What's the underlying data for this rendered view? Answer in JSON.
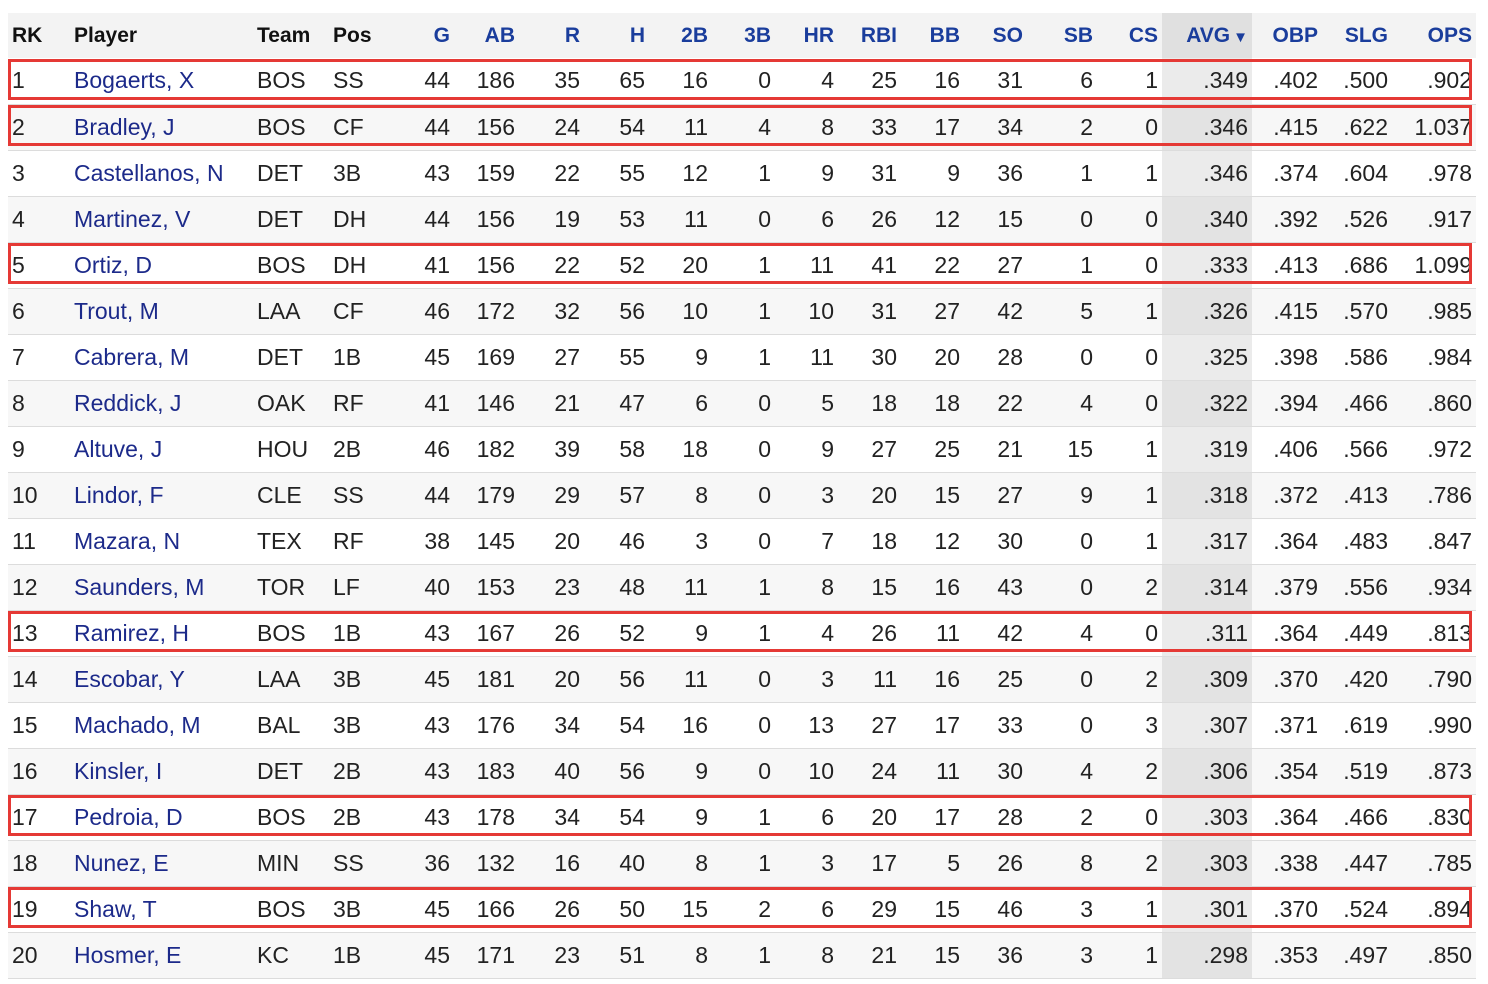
{
  "columns": [
    "RK",
    "Player",
    "Team",
    "Pos",
    "G",
    "AB",
    "R",
    "H",
    "2B",
    "3B",
    "HR",
    "RBI",
    "BB",
    "SO",
    "SB",
    "CS",
    "AVG",
    "OBP",
    "SLG",
    "OPS"
  ],
  "sort": {
    "column": "AVG",
    "indicator": "▼"
  },
  "colors": {
    "link": "#1c2a8a",
    "header_link": "#1a3d9c",
    "highlight": "#e53935"
  },
  "rows": [
    {
      "rk": "1",
      "player": "Bogaerts, X",
      "team": "BOS",
      "pos": "SS",
      "g": "44",
      "ab": "186",
      "r": "35",
      "h": "65",
      "doubles": "16",
      "triples": "0",
      "hr": "4",
      "rbi": "25",
      "bb": "16",
      "so": "31",
      "sb": "6",
      "cs": "1",
      "avg": ".349",
      "obp": ".402",
      "slg": ".500",
      "ops": ".902",
      "highlighted": true
    },
    {
      "rk": "2",
      "player": "Bradley, J",
      "team": "BOS",
      "pos": "CF",
      "g": "44",
      "ab": "156",
      "r": "24",
      "h": "54",
      "doubles": "11",
      "triples": "4",
      "hr": "8",
      "rbi": "33",
      "bb": "17",
      "so": "34",
      "sb": "2",
      "cs": "0",
      "avg": ".346",
      "obp": ".415",
      "slg": ".622",
      "ops": "1.037",
      "highlighted": true
    },
    {
      "rk": "3",
      "player": "Castellanos, N",
      "team": "DET",
      "pos": "3B",
      "g": "43",
      "ab": "159",
      "r": "22",
      "h": "55",
      "doubles": "12",
      "triples": "1",
      "hr": "9",
      "rbi": "31",
      "bb": "9",
      "so": "36",
      "sb": "1",
      "cs": "1",
      "avg": ".346",
      "obp": ".374",
      "slg": ".604",
      "ops": ".978",
      "highlighted": false
    },
    {
      "rk": "4",
      "player": "Martinez, V",
      "team": "DET",
      "pos": "DH",
      "g": "44",
      "ab": "156",
      "r": "19",
      "h": "53",
      "doubles": "11",
      "triples": "0",
      "hr": "6",
      "rbi": "26",
      "bb": "12",
      "so": "15",
      "sb": "0",
      "cs": "0",
      "avg": ".340",
      "obp": ".392",
      "slg": ".526",
      "ops": ".917",
      "highlighted": false
    },
    {
      "rk": "5",
      "player": "Ortiz, D",
      "team": "BOS",
      "pos": "DH",
      "g": "41",
      "ab": "156",
      "r": "22",
      "h": "52",
      "doubles": "20",
      "triples": "1",
      "hr": "11",
      "rbi": "41",
      "bb": "22",
      "so": "27",
      "sb": "1",
      "cs": "0",
      "avg": ".333",
      "obp": ".413",
      "slg": ".686",
      "ops": "1.099",
      "highlighted": true
    },
    {
      "rk": "6",
      "player": "Trout, M",
      "team": "LAA",
      "pos": "CF",
      "g": "46",
      "ab": "172",
      "r": "32",
      "h": "56",
      "doubles": "10",
      "triples": "1",
      "hr": "10",
      "rbi": "31",
      "bb": "27",
      "so": "42",
      "sb": "5",
      "cs": "1",
      "avg": ".326",
      "obp": ".415",
      "slg": ".570",
      "ops": ".985",
      "highlighted": false
    },
    {
      "rk": "7",
      "player": "Cabrera, M",
      "team": "DET",
      "pos": "1B",
      "g": "45",
      "ab": "169",
      "r": "27",
      "h": "55",
      "doubles": "9",
      "triples": "1",
      "hr": "11",
      "rbi": "30",
      "bb": "20",
      "so": "28",
      "sb": "0",
      "cs": "0",
      "avg": ".325",
      "obp": ".398",
      "slg": ".586",
      "ops": ".984",
      "highlighted": false
    },
    {
      "rk": "8",
      "player": "Reddick, J",
      "team": "OAK",
      "pos": "RF",
      "g": "41",
      "ab": "146",
      "r": "21",
      "h": "47",
      "doubles": "6",
      "triples": "0",
      "hr": "5",
      "rbi": "18",
      "bb": "18",
      "so": "22",
      "sb": "4",
      "cs": "0",
      "avg": ".322",
      "obp": ".394",
      "slg": ".466",
      "ops": ".860",
      "highlighted": false
    },
    {
      "rk": "9",
      "player": "Altuve, J",
      "team": "HOU",
      "pos": "2B",
      "g": "46",
      "ab": "182",
      "r": "39",
      "h": "58",
      "doubles": "18",
      "triples": "0",
      "hr": "9",
      "rbi": "27",
      "bb": "25",
      "so": "21",
      "sb": "15",
      "cs": "1",
      "avg": ".319",
      "obp": ".406",
      "slg": ".566",
      "ops": ".972",
      "highlighted": false
    },
    {
      "rk": "10",
      "player": "Lindor, F",
      "team": "CLE",
      "pos": "SS",
      "g": "44",
      "ab": "179",
      "r": "29",
      "h": "57",
      "doubles": "8",
      "triples": "0",
      "hr": "3",
      "rbi": "20",
      "bb": "15",
      "so": "27",
      "sb": "9",
      "cs": "1",
      "avg": ".318",
      "obp": ".372",
      "slg": ".413",
      "ops": ".786",
      "highlighted": false
    },
    {
      "rk": "11",
      "player": "Mazara, N",
      "team": "TEX",
      "pos": "RF",
      "g": "38",
      "ab": "145",
      "r": "20",
      "h": "46",
      "doubles": "3",
      "triples": "0",
      "hr": "7",
      "rbi": "18",
      "bb": "12",
      "so": "30",
      "sb": "0",
      "cs": "1",
      "avg": ".317",
      "obp": ".364",
      "slg": ".483",
      "ops": ".847",
      "highlighted": false
    },
    {
      "rk": "12",
      "player": "Saunders, M",
      "team": "TOR",
      "pos": "LF",
      "g": "40",
      "ab": "153",
      "r": "23",
      "h": "48",
      "doubles": "11",
      "triples": "1",
      "hr": "8",
      "rbi": "15",
      "bb": "16",
      "so": "43",
      "sb": "0",
      "cs": "2",
      "avg": ".314",
      "obp": ".379",
      "slg": ".556",
      "ops": ".934",
      "highlighted": false
    },
    {
      "rk": "13",
      "player": "Ramirez, H",
      "team": "BOS",
      "pos": "1B",
      "g": "43",
      "ab": "167",
      "r": "26",
      "h": "52",
      "doubles": "9",
      "triples": "1",
      "hr": "4",
      "rbi": "26",
      "bb": "11",
      "so": "42",
      "sb": "4",
      "cs": "0",
      "avg": ".311",
      "obp": ".364",
      "slg": ".449",
      "ops": ".813",
      "highlighted": true
    },
    {
      "rk": "14",
      "player": "Escobar, Y",
      "team": "LAA",
      "pos": "3B",
      "g": "45",
      "ab": "181",
      "r": "20",
      "h": "56",
      "doubles": "11",
      "triples": "0",
      "hr": "3",
      "rbi": "11",
      "bb": "16",
      "so": "25",
      "sb": "0",
      "cs": "2",
      "avg": ".309",
      "obp": ".370",
      "slg": ".420",
      "ops": ".790",
      "highlighted": false
    },
    {
      "rk": "15",
      "player": "Machado, M",
      "team": "BAL",
      "pos": "3B",
      "g": "43",
      "ab": "176",
      "r": "34",
      "h": "54",
      "doubles": "16",
      "triples": "0",
      "hr": "13",
      "rbi": "27",
      "bb": "17",
      "so": "33",
      "sb": "0",
      "cs": "3",
      "avg": ".307",
      "obp": ".371",
      "slg": ".619",
      "ops": ".990",
      "highlighted": false
    },
    {
      "rk": "16",
      "player": "Kinsler, I",
      "team": "DET",
      "pos": "2B",
      "g": "43",
      "ab": "183",
      "r": "40",
      "h": "56",
      "doubles": "9",
      "triples": "0",
      "hr": "10",
      "rbi": "24",
      "bb": "11",
      "so": "30",
      "sb": "4",
      "cs": "2",
      "avg": ".306",
      "obp": ".354",
      "slg": ".519",
      "ops": ".873",
      "highlighted": false
    },
    {
      "rk": "17",
      "player": "Pedroia, D",
      "team": "BOS",
      "pos": "2B",
      "g": "43",
      "ab": "178",
      "r": "34",
      "h": "54",
      "doubles": "9",
      "triples": "1",
      "hr": "6",
      "rbi": "20",
      "bb": "17",
      "so": "28",
      "sb": "2",
      "cs": "0",
      "avg": ".303",
      "obp": ".364",
      "slg": ".466",
      "ops": ".830",
      "highlighted": true
    },
    {
      "rk": "18",
      "player": "Nunez, E",
      "team": "MIN",
      "pos": "SS",
      "g": "36",
      "ab": "132",
      "r": "16",
      "h": "40",
      "doubles": "8",
      "triples": "1",
      "hr": "3",
      "rbi": "17",
      "bb": "5",
      "so": "26",
      "sb": "8",
      "cs": "2",
      "avg": ".303",
      "obp": ".338",
      "slg": ".447",
      "ops": ".785",
      "highlighted": false
    },
    {
      "rk": "19",
      "player": "Shaw, T",
      "team": "BOS",
      "pos": "3B",
      "g": "45",
      "ab": "166",
      "r": "26",
      "h": "50",
      "doubles": "15",
      "triples": "2",
      "hr": "6",
      "rbi": "29",
      "bb": "15",
      "so": "46",
      "sb": "3",
      "cs": "1",
      "avg": ".301",
      "obp": ".370",
      "slg": ".524",
      "ops": ".894",
      "highlighted": true
    },
    {
      "rk": "20",
      "player": "Hosmer, E",
      "team": "KC",
      "pos": "1B",
      "g": "45",
      "ab": "171",
      "r": "23",
      "h": "51",
      "doubles": "8",
      "triples": "1",
      "hr": "8",
      "rbi": "21",
      "bb": "15",
      "so": "36",
      "sb": "3",
      "cs": "1",
      "avg": ".298",
      "obp": ".353",
      "slg": ".497",
      "ops": ".850",
      "highlighted": false
    }
  ]
}
